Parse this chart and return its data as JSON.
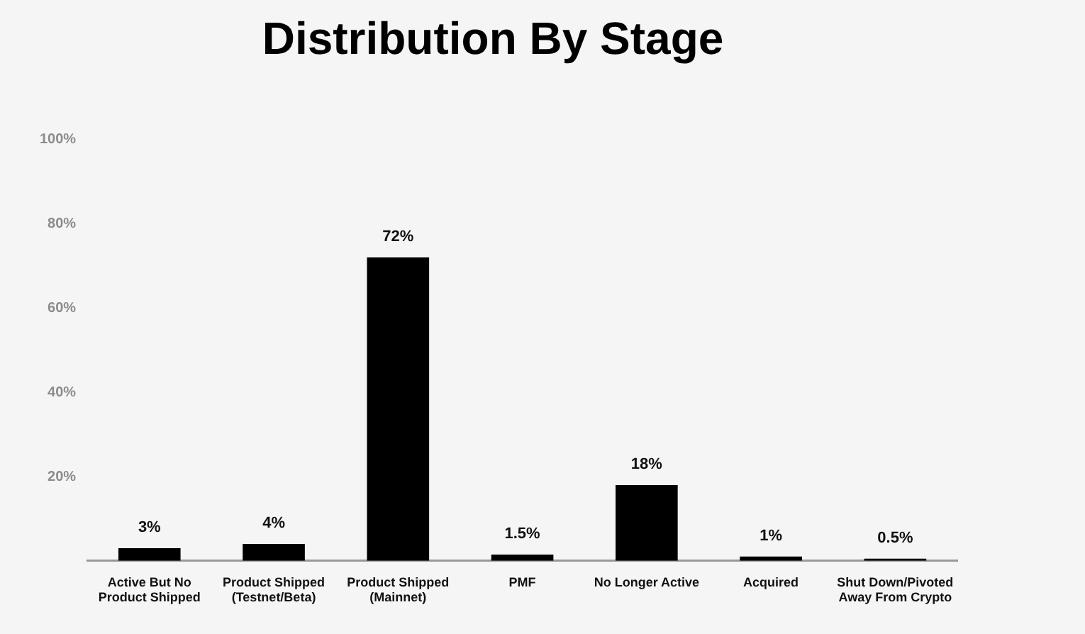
{
  "chart_data": {
    "type": "bar",
    "title": "Distribution By Stage",
    "categories": [
      "Active But No Product Shipped",
      "Product Shipped (Testnet/Beta)",
      "Product Shipped (Mainnet)",
      "PMF",
      "No Longer Active",
      "Acquired",
      "Shut Down/Pivoted Away From Crypto"
    ],
    "values": [
      3,
      4,
      72,
      1.5,
      18,
      1,
      0.5
    ],
    "value_labels": [
      "3%",
      "4%",
      "72%",
      "1.5%",
      "18%",
      "1%",
      "0.5%"
    ],
    "color": "#000000",
    "ylim": [
      0,
      100
    ],
    "yticks": [
      {
        "value": 0,
        "label": null
      },
      {
        "value": 20,
        "label": "20%"
      },
      {
        "value": 40,
        "label": "40%"
      },
      {
        "value": 60,
        "label": "60%"
      },
      {
        "value": 80,
        "label": "80%"
      },
      {
        "value": 100,
        "label": "100%"
      }
    ],
    "grid": false
  }
}
